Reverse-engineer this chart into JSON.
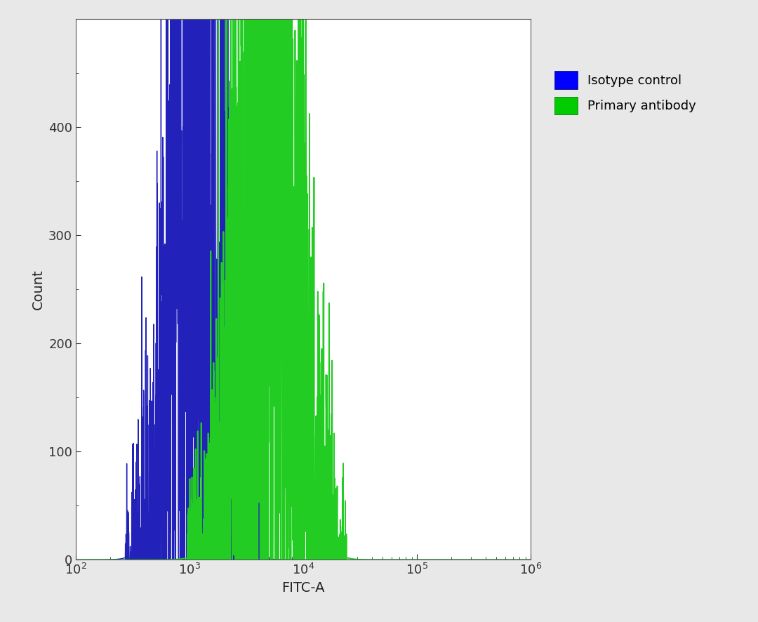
{
  "xlabel": "FITC-A",
  "ylabel": "Count",
  "xlim_log": [
    2,
    6
  ],
  "ylim": [
    0,
    500
  ],
  "yticks": [
    0,
    100,
    200,
    300,
    400
  ],
  "background_color": "#e8e8e8",
  "plot_bg_color": "#ffffff",
  "blue_color": "#2222bb",
  "green_color": "#22cc22",
  "blue_fill_color": "#c0c0e8",
  "green_fill_color": "#d0f0d0",
  "legend_labels": [
    "Isotype control",
    "Primary antibody"
  ],
  "legend_blue": "#0000ff",
  "legend_green": "#00cc00",
  "blue_peak_log": 3.05,
  "blue_peak_count": 370,
  "blue_sigma_log": 0.19,
  "green_peak_log": 3.68,
  "green_peak_count": 400,
  "green_sigma_log": 0.215,
  "noise_seed": 12,
  "noise_blue": 6,
  "noise_green": 8
}
